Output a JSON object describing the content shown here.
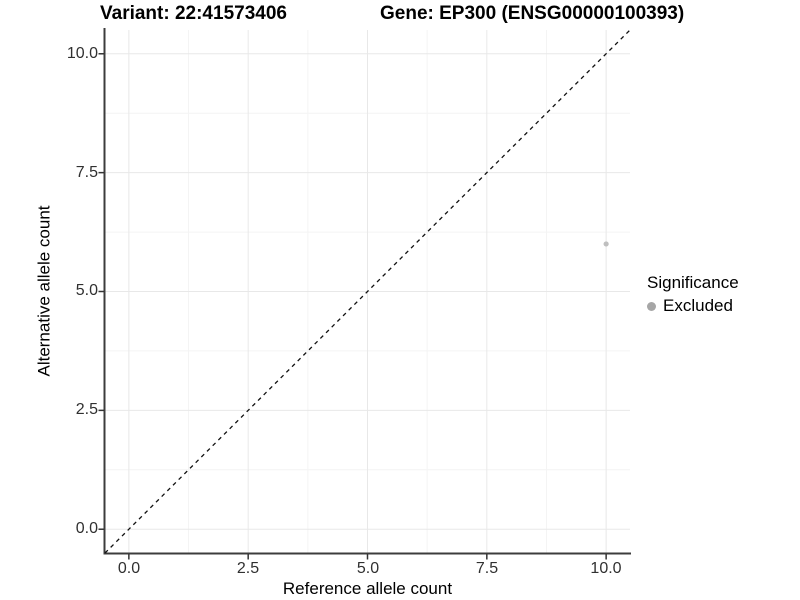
{
  "chart_data": {
    "type": "scatter",
    "title": "Variant: 22:41573406",
    "title2": "Gene: EP300 (ENSG00000100393)",
    "xlabel": "Reference allele count",
    "ylabel": "Alternative allele count",
    "xlim": [
      -0.5,
      10.5
    ],
    "ylim": [
      -0.5,
      10.5
    ],
    "x_ticks": [
      0,
      2.5,
      5,
      7.5,
      10
    ],
    "y_ticks": [
      0,
      2.5,
      5,
      7.5,
      10
    ],
    "x_tick_labels": [
      "0.0",
      "2.5",
      "5.0",
      "7.5",
      "10.0"
    ],
    "y_tick_labels": [
      "0.0",
      "2.5",
      "5.0",
      "7.5",
      "10.0"
    ],
    "x_minor_ticks": [
      1.25,
      3.75,
      6.25,
      8.75
    ],
    "y_minor_ticks": [
      1.25,
      3.75,
      6.25,
      8.75
    ],
    "grid": true,
    "legend": {
      "title": "Significance",
      "position": "right"
    },
    "identity_line": {
      "show": true,
      "style": "dashed",
      "color": "#111111",
      "from": -0.5,
      "to": 10.5
    },
    "series": [
      {
        "name": "Excluded",
        "point_color": "#bfbfbf",
        "legend_dot_color": "#a6a6a6",
        "points": [
          {
            "x": 10,
            "y": 6
          }
        ]
      }
    ]
  },
  "colors": {
    "grid_major": "#e8e8e8",
    "grid_minor": "#f4f4f4",
    "axis_line": "#3c3c3c",
    "tick_mark": "#333333",
    "background": "#ffffff"
  }
}
